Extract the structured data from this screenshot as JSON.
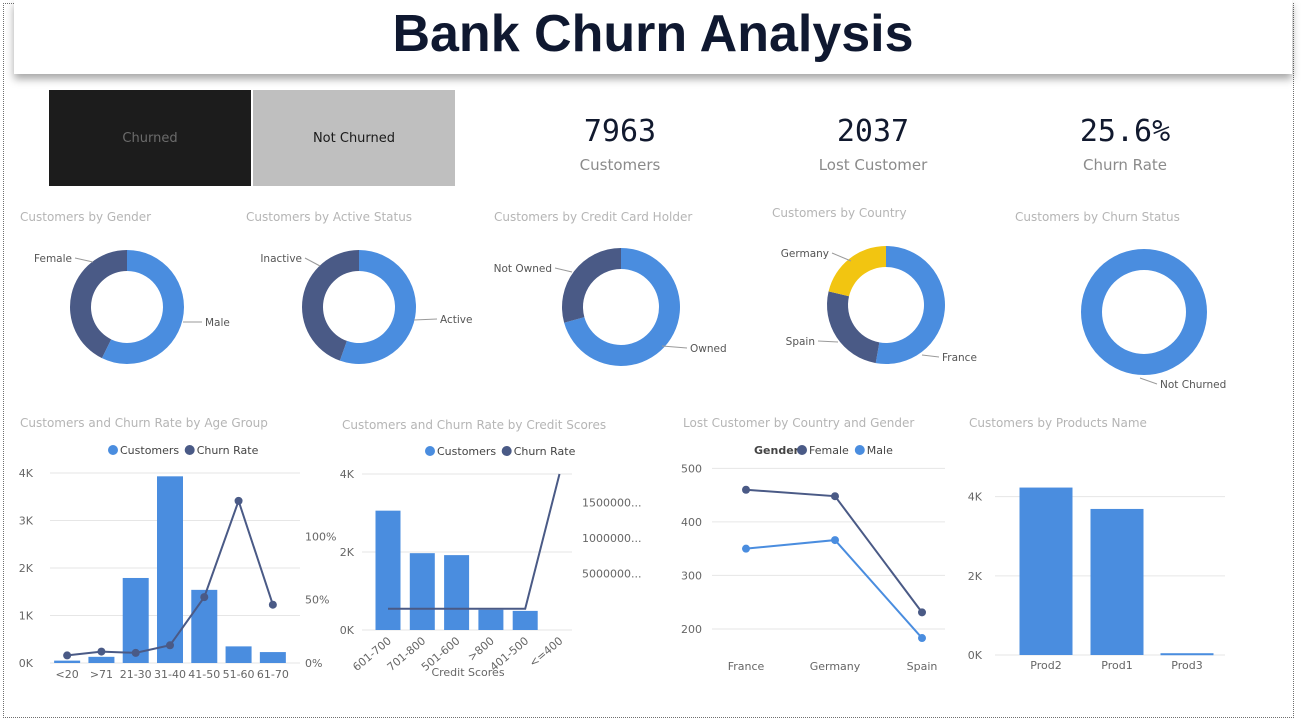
{
  "title": "Bank Churn Analysis",
  "slicer": {
    "churned": "Churned",
    "not_churned": "Not Churned"
  },
  "kpis": [
    {
      "value": "7963",
      "label": "Customers"
    },
    {
      "value": "2037",
      "label": "Lost Customer"
    },
    {
      "value": "25.6%",
      "label": "Churn Rate"
    }
  ],
  "colors": {
    "primary": "#4a8ddf",
    "secondary": "#4a5a86",
    "accent": "#f2c511",
    "gridline": "#e6e6e6"
  },
  "chart_data": [
    {
      "id": "gender",
      "type": "pie",
      "title": "Customers by Gender",
      "slices": [
        {
          "label": "Male",
          "value": 4559,
          "color": "#4a8ddf"
        },
        {
          "label": "Female",
          "value": 3404,
          "color": "#4a5a86"
        }
      ]
    },
    {
      "id": "active",
      "type": "pie",
      "title": "Customers by Active Status",
      "slices": [
        {
          "label": "Active",
          "value": 4416,
          "color": "#4a8ddf"
        },
        {
          "label": "Inactive",
          "value": 3547,
          "color": "#4a5a86"
        }
      ]
    },
    {
      "id": "card",
      "type": "pie",
      "title": "Customers by Credit Card Holder",
      "slices": [
        {
          "label": "Owned",
          "value": 5631,
          "color": "#4a8ddf"
        },
        {
          "label": "Not Owned",
          "value": 2332,
          "color": "#4a5a86"
        }
      ]
    },
    {
      "id": "country",
      "type": "pie",
      "title": "Customers by Country",
      "slices": [
        {
          "label": "France",
          "value": 4204,
          "color": "#4a8ddf"
        },
        {
          "label": "Spain",
          "value": 2064,
          "color": "#4a5a86"
        },
        {
          "label": "Germany",
          "value": 1695,
          "color": "#f2c511"
        }
      ]
    },
    {
      "id": "churn",
      "type": "pie",
      "title": "Customers by Churn Status",
      "slices": [
        {
          "label": "Not Churned",
          "value": 7963,
          "color": "#4a8ddf"
        }
      ]
    },
    {
      "id": "age",
      "type": "bar",
      "title": "Customers and Churn Rate by Age Group",
      "legend": [
        "Customers",
        "Churn Rate"
      ],
      "categories": [
        "<20",
        ">71",
        "21-30",
        "31-40",
        "41-50",
        "51-60",
        "61-70"
      ],
      "series": [
        {
          "name": "Customers",
          "values": [
            50,
            130,
            1790,
            3930,
            1540,
            350,
            230
          ]
        },
        {
          "name": "Churn Rate",
          "values": [
            6,
            9,
            8,
            14,
            52,
            128,
            46
          ]
        }
      ],
      "ylim": [
        0,
        4000
      ],
      "y_ticks": [
        "0K",
        "1K",
        "2K",
        "3K",
        "4K"
      ],
      "y2lim": [
        0,
        150
      ],
      "y2_ticks": [
        "0%",
        "50%",
        "100%"
      ]
    },
    {
      "id": "credit",
      "type": "bar",
      "title": "Customers and Churn Rate by Credit Scores",
      "legend": [
        "Customers",
        "Churn Rate"
      ],
      "xlabel": "Credit Scores",
      "categories": [
        "601-700",
        "701-800",
        "501-600",
        ">800",
        "401-500",
        "<=400"
      ],
      "series": [
        {
          "name": "Customers",
          "values": [
            3060,
            1970,
            1920,
            520,
            490,
            0
          ]
        },
        {
          "name": "Churn Rate",
          "values": [
            0,
            0,
            0,
            0,
            0,
            1900000
          ]
        }
      ],
      "ylim": [
        0,
        4000
      ],
      "y_ticks": [
        "0K",
        "2K",
        "4K"
      ],
      "y2lim": [
        -300000,
        1900000
      ],
      "y2_ticks": [
        "5000000...",
        "1000000...",
        "1500000..."
      ]
    },
    {
      "id": "lost",
      "type": "line",
      "title": "Lost Customer by Country and Gender",
      "legend_title": "Gender",
      "legend": [
        "Female",
        "Male"
      ],
      "categories": [
        "France",
        "Germany",
        "Spain"
      ],
      "series": [
        {
          "name": "Female",
          "values": [
            460,
            448,
            231
          ]
        },
        {
          "name": "Male",
          "values": [
            350,
            366,
            183
          ]
        }
      ],
      "ylim": [
        170,
        510
      ],
      "y_ticks": [
        "200",
        "300",
        "400",
        "500"
      ]
    },
    {
      "id": "products",
      "type": "bar",
      "title": "Customers by Products Name",
      "categories": [
        "Prod2",
        "Prod1",
        "Prod3"
      ],
      "values": [
        4230,
        3690,
        45
      ],
      "ylim": [
        0,
        4800
      ],
      "y_ticks": [
        "0K",
        "2K",
        "4K"
      ]
    }
  ]
}
